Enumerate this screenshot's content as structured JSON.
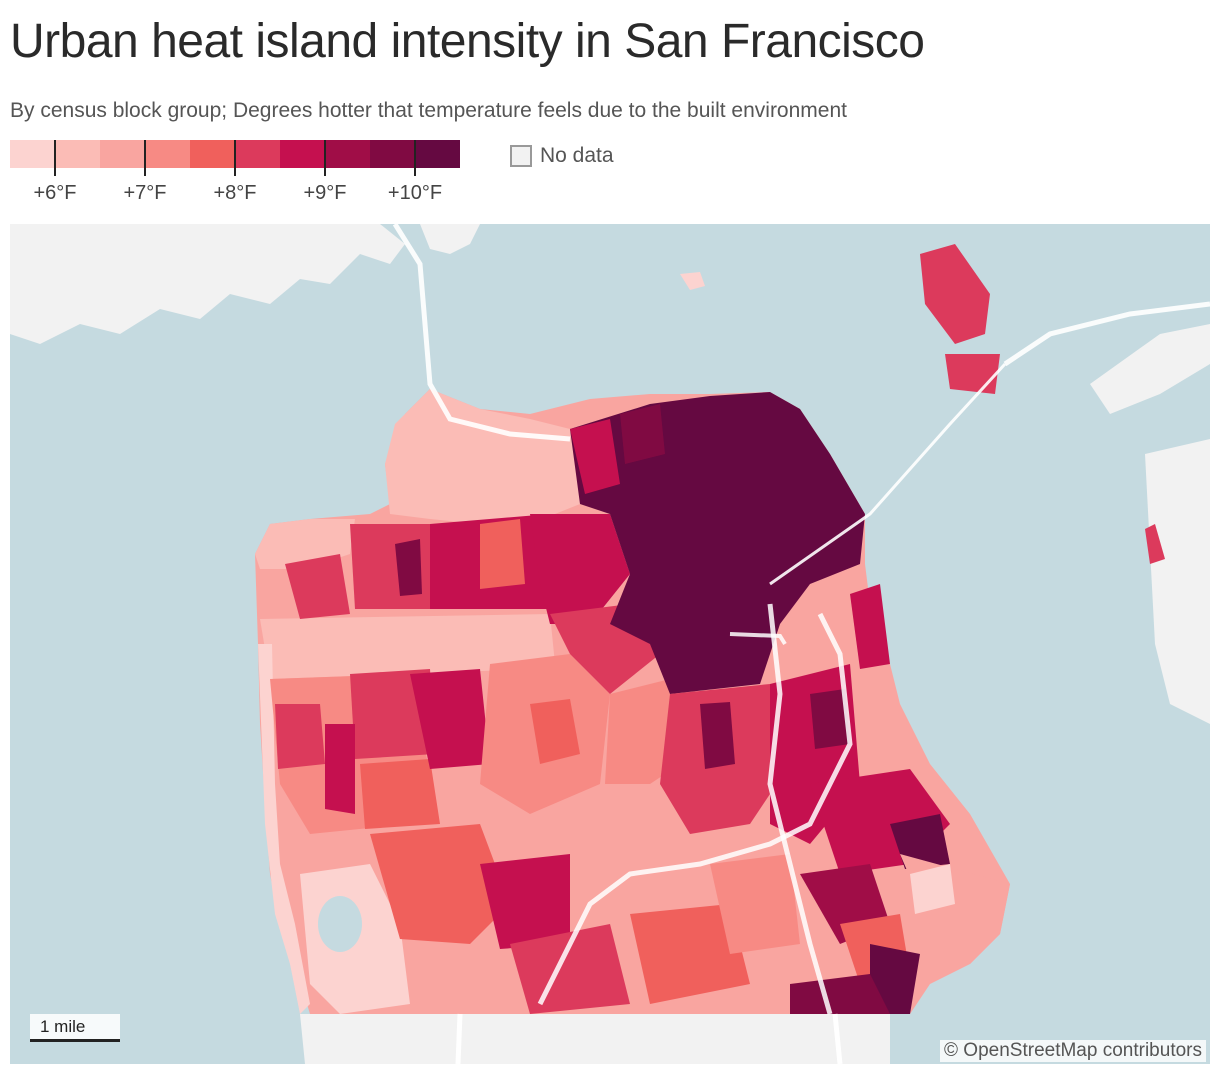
{
  "header": {
    "title": "Urban heat island intensity in San Francisco",
    "subtitle": "By census block group; Degrees hotter that temperature feels due to the built environment"
  },
  "legend": {
    "swatch_colors": [
      "#fcd3d0",
      "#fbbcb6",
      "#f9a5a0",
      "#f78a84",
      "#f0605c",
      "#dc3a5c",
      "#c5104f",
      "#a00d47",
      "#800a42",
      "#650941"
    ],
    "ticks": [
      "+6°F",
      "+7°F",
      "+8°F",
      "+9°F",
      "+10°F"
    ],
    "no_data_label": "No data",
    "no_data_color": "#f2f2f2"
  },
  "colors": {
    "water": "#c5dae0",
    "land": "#f2f2f2",
    "roads": "#ffffff"
  },
  "map": {
    "region": "San Francisco",
    "unit": "census block group"
  },
  "scale_label": "1 mile",
  "attribution": "© OpenStreetMap contributors"
}
